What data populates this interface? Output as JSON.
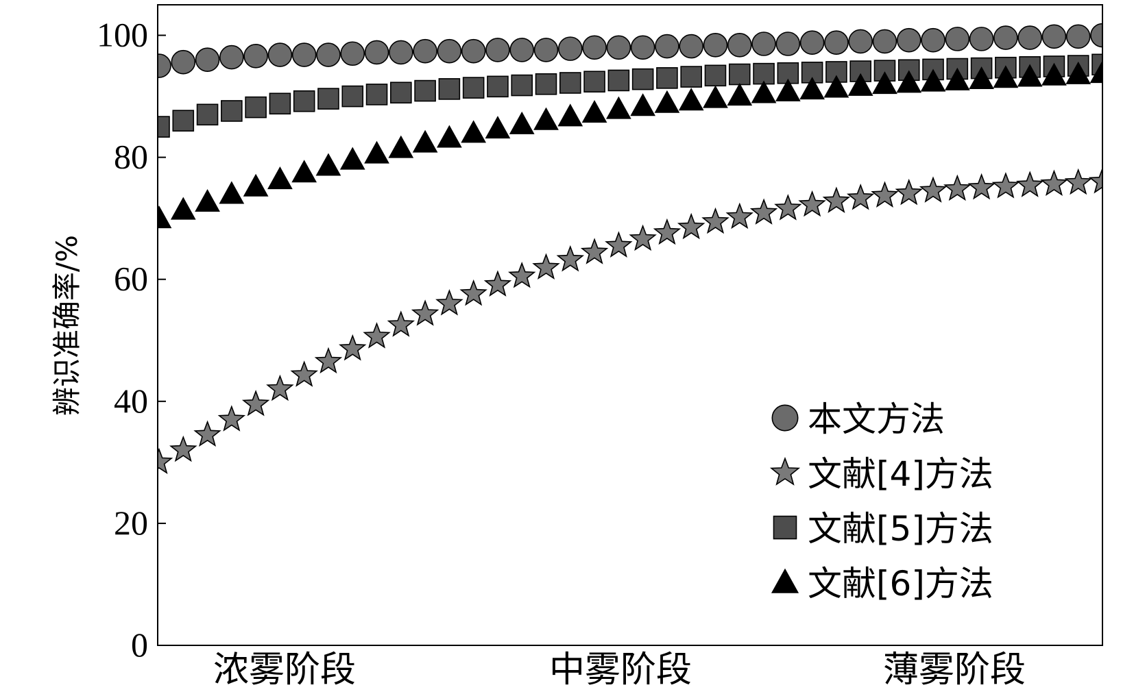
{
  "chart_data": {
    "type": "scatter",
    "title": "",
    "xlabel": "",
    "ylabel": "辨识准确率/%",
    "categories": [
      "浓雾阶段",
      "中雾阶段",
      "薄雾阶段"
    ],
    "ylim": [
      0,
      105
    ],
    "yticks": [
      "0",
      "20",
      "40",
      "60",
      "80",
      "100"
    ],
    "grid": false,
    "legend_position": "lower-right",
    "points_per_series": 40,
    "series": [
      {
        "name": "本文方法",
        "marker": "circle",
        "color": "#6b6b6b",
        "values": [
          95.0,
          95.6,
          96.0,
          96.4,
          96.6,
          96.8,
          96.8,
          96.8,
          97.0,
          97.2,
          97.2,
          97.4,
          97.4,
          97.4,
          97.6,
          97.6,
          97.6,
          97.8,
          98.0,
          98.0,
          98.0,
          98.2,
          98.2,
          98.4,
          98.4,
          98.6,
          98.6,
          98.8,
          98.8,
          99.0,
          99.0,
          99.2,
          99.2,
          99.4,
          99.4,
          99.6,
          99.6,
          99.8,
          99.8,
          100.0
        ]
      },
      {
        "name": "文献[4]方法",
        "marker": "star",
        "color": "#7a7a7a",
        "values": [
          30.0,
          32.0,
          34.5,
          37.0,
          39.5,
          42.0,
          44.3,
          46.5,
          48.6,
          50.6,
          52.5,
          54.3,
          56.0,
          57.6,
          59.1,
          60.5,
          61.9,
          63.2,
          64.4,
          65.5,
          66.6,
          67.6,
          68.5,
          69.4,
          70.2,
          70.9,
          71.6,
          72.2,
          72.8,
          73.3,
          73.7,
          74.1,
          74.5,
          74.8,
          75.0,
          75.2,
          75.4,
          75.6,
          75.8,
          76.0
        ]
      },
      {
        "name": "文献[5]方法",
        "marker": "square",
        "color": "#4d4d4d",
        "values": [
          85.0,
          86.0,
          87.0,
          87.6,
          88.2,
          88.8,
          89.2,
          89.6,
          90.0,
          90.3,
          90.6,
          90.9,
          91.2,
          91.4,
          91.6,
          91.8,
          92.0,
          92.2,
          92.4,
          92.6,
          92.8,
          93.0,
          93.2,
          93.4,
          93.6,
          93.7,
          93.8,
          93.9,
          94.0,
          94.1,
          94.2,
          94.3,
          94.4,
          94.5,
          94.6,
          94.7,
          94.8,
          94.9,
          95.0,
          95.2
        ]
      },
      {
        "name": "文献[6]方法",
        "marker": "triangle",
        "color": "#000000",
        "values": [
          70.0,
          71.4,
          72.7,
          74.0,
          75.2,
          76.4,
          77.5,
          78.6,
          79.6,
          80.6,
          81.5,
          82.4,
          83.2,
          84.0,
          84.7,
          85.4,
          86.1,
          86.7,
          87.3,
          87.9,
          88.4,
          88.9,
          89.3,
          89.7,
          90.1,
          90.5,
          90.8,
          91.1,
          91.4,
          91.7,
          92.0,
          92.2,
          92.4,
          92.6,
          92.8,
          93.0,
          93.2,
          93.4,
          93.6,
          93.8
        ]
      }
    ]
  }
}
